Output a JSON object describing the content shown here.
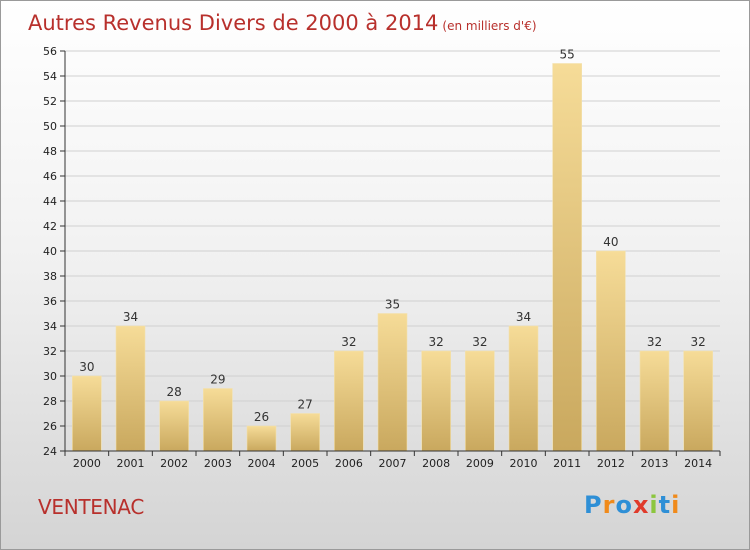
{
  "page": {
    "title": "Autres Revenus Divers de 2000 à 2014",
    "unit_note": "(en milliers d'€)",
    "commune": "VENTENAC",
    "logo": {
      "letters": [
        "P",
        "r",
        "o",
        "x",
        "i",
        "t",
        "i"
      ],
      "colors": [
        "#2e8fd6",
        "#f08a1a",
        "#2e8fd6",
        "#e03a2a",
        "#8cc63e",
        "#2e8fd6",
        "#f08a1a"
      ]
    }
  },
  "colors": {
    "title": "#b8302c",
    "bar_light": "#f6dc98",
    "bar_dark": "#c9a85e",
    "axis": "#333333",
    "grid": "#d0d0d0"
  },
  "chart_data": {
    "type": "bar",
    "categories": [
      "2000",
      "2001",
      "2002",
      "2003",
      "2004",
      "2005",
      "2006",
      "2007",
      "2008",
      "2009",
      "2010",
      "2011",
      "2012",
      "2013",
      "2014"
    ],
    "values": [
      30,
      34,
      28,
      29,
      26,
      27,
      32,
      35,
      32,
      32,
      34,
      55,
      40,
      32,
      32
    ],
    "data_labels": [
      "30",
      "34",
      "28",
      "29",
      "26",
      "27",
      "32",
      "35",
      "32",
      "32",
      "34",
      "55",
      "40",
      "32",
      "32"
    ],
    "ylim": [
      24,
      56
    ],
    "yticks": [
      24,
      26,
      28,
      30,
      32,
      34,
      36,
      38,
      40,
      42,
      44,
      46,
      48,
      50,
      52,
      54,
      56
    ],
    "grid": true,
    "title": "Autres Revenus Divers de 2000 à 2014",
    "xlabel": "",
    "ylabel": ""
  }
}
